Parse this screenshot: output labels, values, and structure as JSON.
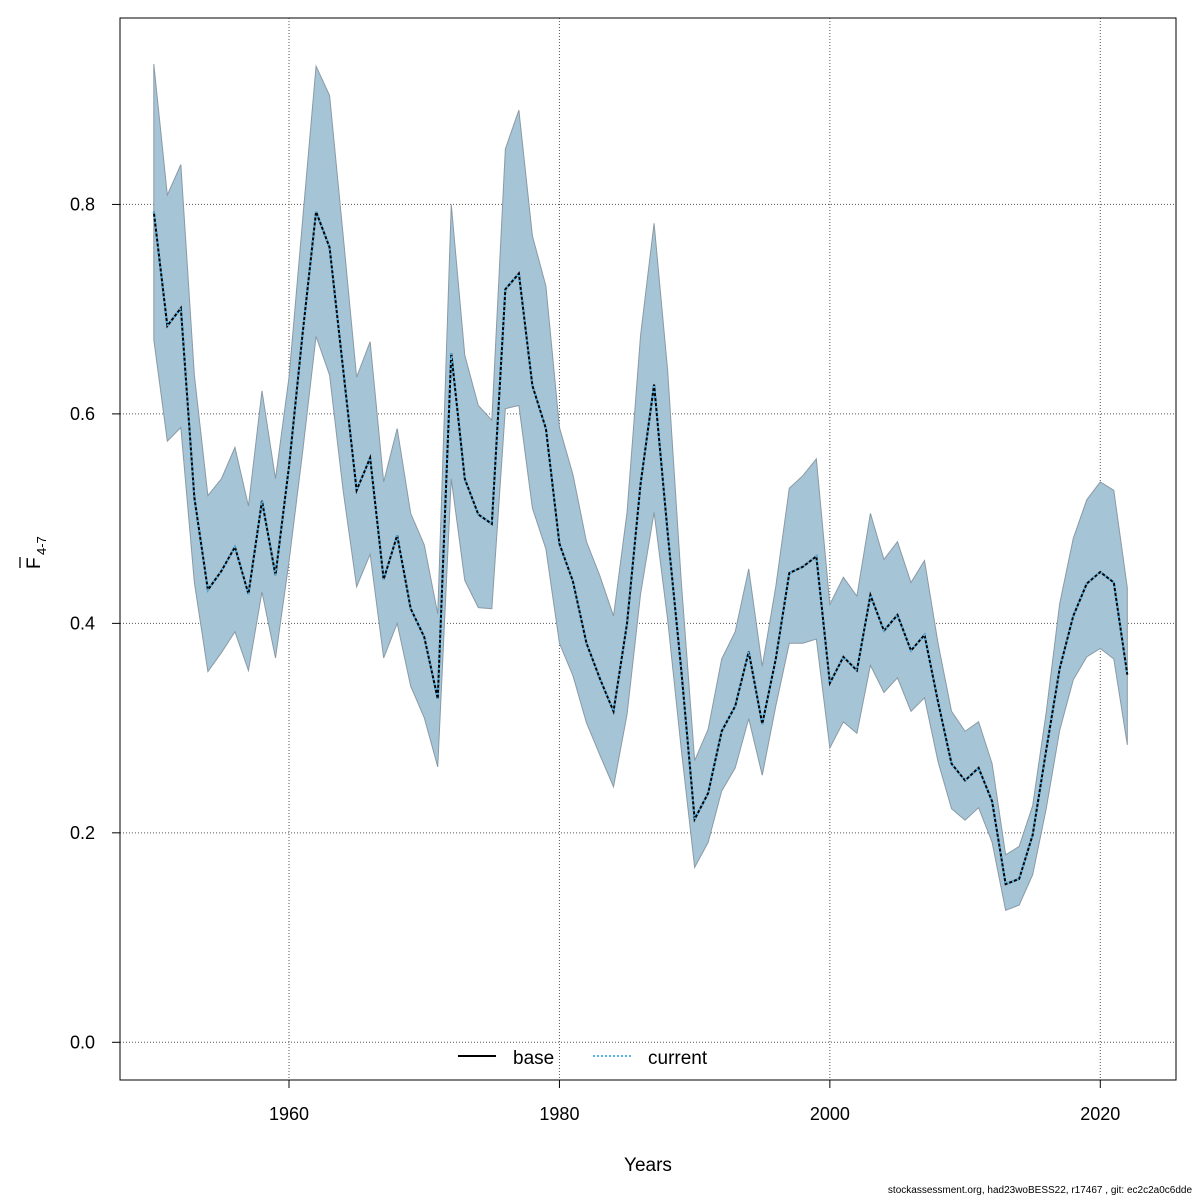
{
  "chart_data": {
    "type": "line",
    "title": "",
    "xlabel": "Years",
    "ylabel": "F",
    "ylabel_subscript": "4-7",
    "xlim": [
      1947.5,
      2025.6
    ],
    "ylim": [
      -0.036,
      0.978
    ],
    "xticks": [
      1960,
      1980,
      2000,
      2020
    ],
    "yticks": [
      0.0,
      0.2,
      0.4,
      0.6,
      0.8
    ],
    "ytick_labels": [
      "0.0",
      "0.2",
      "0.4",
      "0.6",
      "0.8"
    ],
    "grid": true,
    "legend_position": "bottom",
    "colors": {
      "band": "#a5c4d6",
      "band_edge": "#8a9aa5",
      "base": "#000000",
      "current": "#56b4e9"
    },
    "x": [
      1950,
      1951,
      1952,
      1953,
      1954,
      1955,
      1956,
      1957,
      1958,
      1959,
      1960,
      1961,
      1962,
      1963,
      1964,
      1965,
      1966,
      1967,
      1968,
      1969,
      1970,
      1971,
      1972,
      1973,
      1974,
      1975,
      1976,
      1977,
      1978,
      1979,
      1980,
      1981,
      1982,
      1983,
      1984,
      1985,
      1986,
      1987,
      1988,
      1989,
      1990,
      1991,
      1992,
      1993,
      1994,
      1995,
      1996,
      1997,
      1998,
      1999,
      2000,
      2001,
      2002,
      2003,
      2004,
      2005,
      2006,
      2007,
      2008,
      2009,
      2010,
      2011,
      2012,
      2013,
      2014,
      2015,
      2016,
      2017,
      2018,
      2019,
      2020,
      2021,
      2022
    ],
    "series": [
      {
        "name": "base",
        "style": "solid",
        "values": [
          0.793,
          0.684,
          0.701,
          0.52,
          0.432,
          0.45,
          0.473,
          0.428,
          0.517,
          0.446,
          0.55,
          0.676,
          0.793,
          0.759,
          0.643,
          0.527,
          0.558,
          0.442,
          0.484,
          0.414,
          0.387,
          0.328,
          0.658,
          0.538,
          0.504,
          0.495,
          0.719,
          0.734,
          0.627,
          0.586,
          0.476,
          0.44,
          0.381,
          0.347,
          0.316,
          0.4,
          0.533,
          0.628,
          0.487,
          0.357,
          0.213,
          0.238,
          0.297,
          0.321,
          0.373,
          0.304,
          0.366,
          0.448,
          0.454,
          0.464,
          0.343,
          0.368,
          0.355,
          0.427,
          0.393,
          0.408,
          0.374,
          0.389,
          0.325,
          0.266,
          0.25,
          0.262,
          0.23,
          0.151,
          0.156,
          0.198,
          0.279,
          0.357,
          0.407,
          0.438,
          0.449,
          0.439,
          0.351
        ]
      },
      {
        "name": "current",
        "style": "dotted",
        "values": [
          0.793,
          0.684,
          0.701,
          0.52,
          0.432,
          0.45,
          0.473,
          0.428,
          0.517,
          0.446,
          0.55,
          0.676,
          0.793,
          0.759,
          0.643,
          0.527,
          0.558,
          0.442,
          0.484,
          0.414,
          0.387,
          0.328,
          0.658,
          0.538,
          0.504,
          0.495,
          0.719,
          0.734,
          0.627,
          0.586,
          0.476,
          0.44,
          0.381,
          0.347,
          0.316,
          0.4,
          0.533,
          0.628,
          0.487,
          0.357,
          0.213,
          0.238,
          0.297,
          0.321,
          0.373,
          0.304,
          0.366,
          0.448,
          0.454,
          0.464,
          0.343,
          0.368,
          0.355,
          0.427,
          0.393,
          0.408,
          0.374,
          0.389,
          0.325,
          0.266,
          0.25,
          0.262,
          0.23,
          0.151,
          0.156,
          0.198,
          0.279,
          0.357,
          0.407,
          0.438,
          0.449,
          0.439,
          0.351
        ]
      }
    ],
    "band_upper": [
      0.934,
      0.809,
      0.838,
      0.637,
      0.522,
      0.538,
      0.568,
      0.512,
      0.622,
      0.538,
      0.635,
      0.784,
      0.932,
      0.904,
      0.771,
      0.635,
      0.669,
      0.535,
      0.586,
      0.505,
      0.475,
      0.409,
      0.8,
      0.656,
      0.608,
      0.594,
      0.853,
      0.89,
      0.77,
      0.722,
      0.587,
      0.542,
      0.478,
      0.445,
      0.407,
      0.506,
      0.675,
      0.782,
      0.642,
      0.442,
      0.269,
      0.299,
      0.366,
      0.392,
      0.452,
      0.359,
      0.435,
      0.529,
      0.541,
      0.557,
      0.418,
      0.444,
      0.426,
      0.505,
      0.461,
      0.478,
      0.439,
      0.46,
      0.381,
      0.316,
      0.297,
      0.306,
      0.266,
      0.179,
      0.187,
      0.226,
      0.315,
      0.419,
      0.481,
      0.518,
      0.535,
      0.527,
      0.434
    ],
    "band_lower": [
      0.671,
      0.574,
      0.587,
      0.439,
      0.354,
      0.372,
      0.392,
      0.355,
      0.43,
      0.367,
      0.459,
      0.563,
      0.674,
      0.637,
      0.527,
      0.435,
      0.466,
      0.367,
      0.4,
      0.34,
      0.31,
      0.263,
      0.538,
      0.441,
      0.415,
      0.414,
      0.605,
      0.608,
      0.51,
      0.471,
      0.381,
      0.35,
      0.305,
      0.274,
      0.244,
      0.313,
      0.428,
      0.506,
      0.404,
      0.281,
      0.167,
      0.191,
      0.24,
      0.262,
      0.309,
      0.255,
      0.321,
      0.381,
      0.381,
      0.385,
      0.281,
      0.306,
      0.295,
      0.36,
      0.334,
      0.348,
      0.316,
      0.329,
      0.268,
      0.223,
      0.212,
      0.224,
      0.191,
      0.126,
      0.131,
      0.16,
      0.223,
      0.298,
      0.346,
      0.368,
      0.376,
      0.366,
      0.284
    ]
  },
  "legend": {
    "base": "base",
    "current": "current"
  },
  "footer": "stockassessment.org, had23woBESS22, r17467 , git: ec2c2a0c6dde"
}
